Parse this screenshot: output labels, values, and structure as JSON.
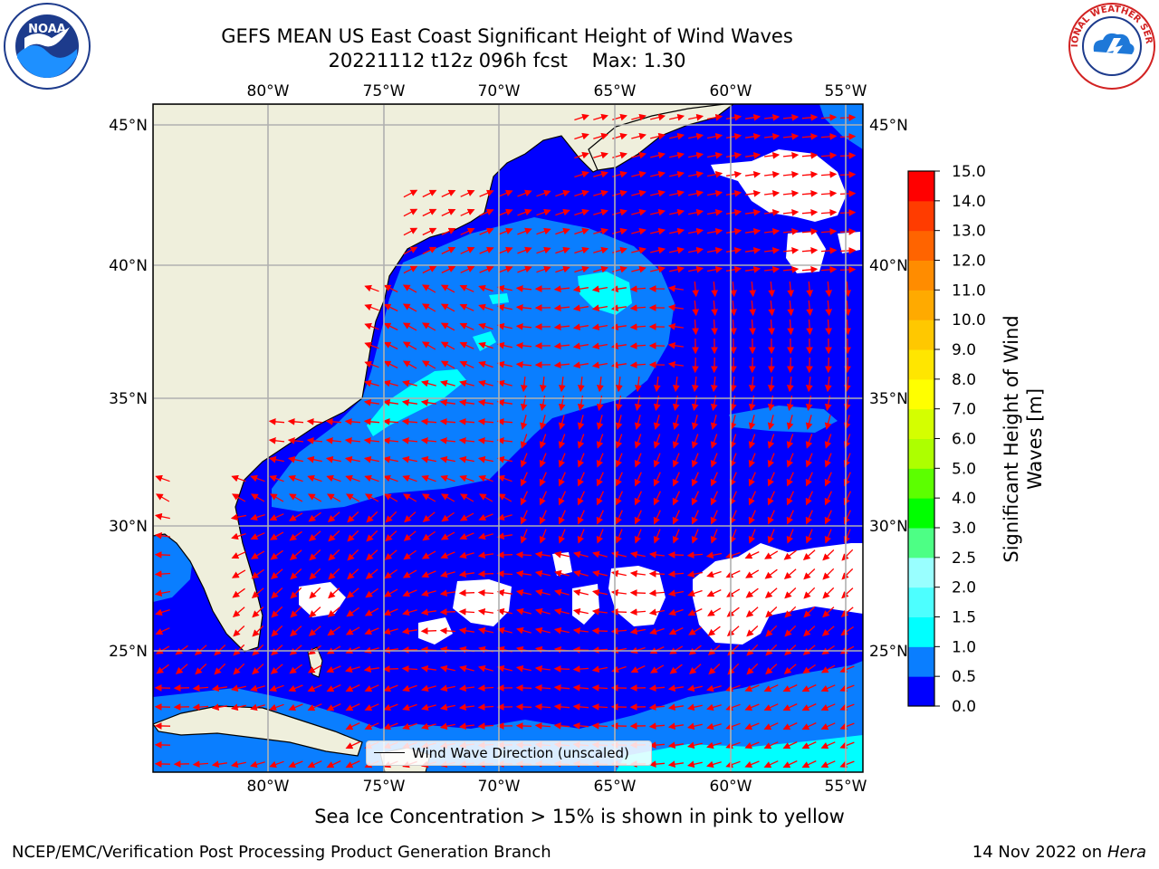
{
  "header": {
    "title_line1": "GEFS MEAN US East Coast Significant Height of Wind Waves",
    "title_line2": "20221112 t12z 096h fcst    Max: 1.30"
  },
  "logos": {
    "left": {
      "icon": "noaa-logo-icon",
      "text": "NOAA"
    },
    "right": {
      "icon": "nws-logo-icon",
      "text": "NATIONAL WEATHER SERVICE"
    }
  },
  "map": {
    "lon_ticks": [
      "80°W",
      "75°W",
      "70°W",
      "65°W",
      "60°W",
      "55°W"
    ],
    "lat_ticks": [
      "45°N",
      "40°N",
      "35°N",
      "30°N",
      "25°N"
    ],
    "legend_label": "Wind Wave Direction (unscaled)",
    "colors": {
      "land": "#efefdc",
      "level_0": "#0000ff",
      "level_1": "#0a7eff",
      "level_2": "#00ffff",
      "level_3": "#4dffff",
      "no_data": "#ffffff",
      "arrow": "#ff0000",
      "grid": "#b0b0b0"
    }
  },
  "colorbar": {
    "label": "Significant Height of Wind Waves [m]",
    "ticks": [
      "0.0",
      "0.5",
      "1.0",
      "1.5",
      "2.0",
      "2.5",
      "3.0",
      "4.0",
      "5.0",
      "6.0",
      "7.0",
      "8.0",
      "9.0",
      "10.0",
      "11.0",
      "12.0",
      "13.0",
      "14.0",
      "15.0"
    ],
    "colors": [
      "#0000ff",
      "#0a7eff",
      "#00ffff",
      "#4dffff",
      "#99ffff",
      "#4dff85",
      "#00ff00",
      "#5cff00",
      "#adff00",
      "#d4ff00",
      "#ffff00",
      "#ffe600",
      "#ffc800",
      "#ffaa00",
      "#ff8c00",
      "#ff6400",
      "#ff3c00",
      "#ff0000"
    ]
  },
  "caption": "Sea Ice Concentration > 15% is shown in pink to yellow",
  "footer": {
    "left": "NCEP/EMC/Verification Post Processing Product Generation Branch",
    "right_date": "14 Nov 2022 on",
    "right_host": "Hera"
  }
}
